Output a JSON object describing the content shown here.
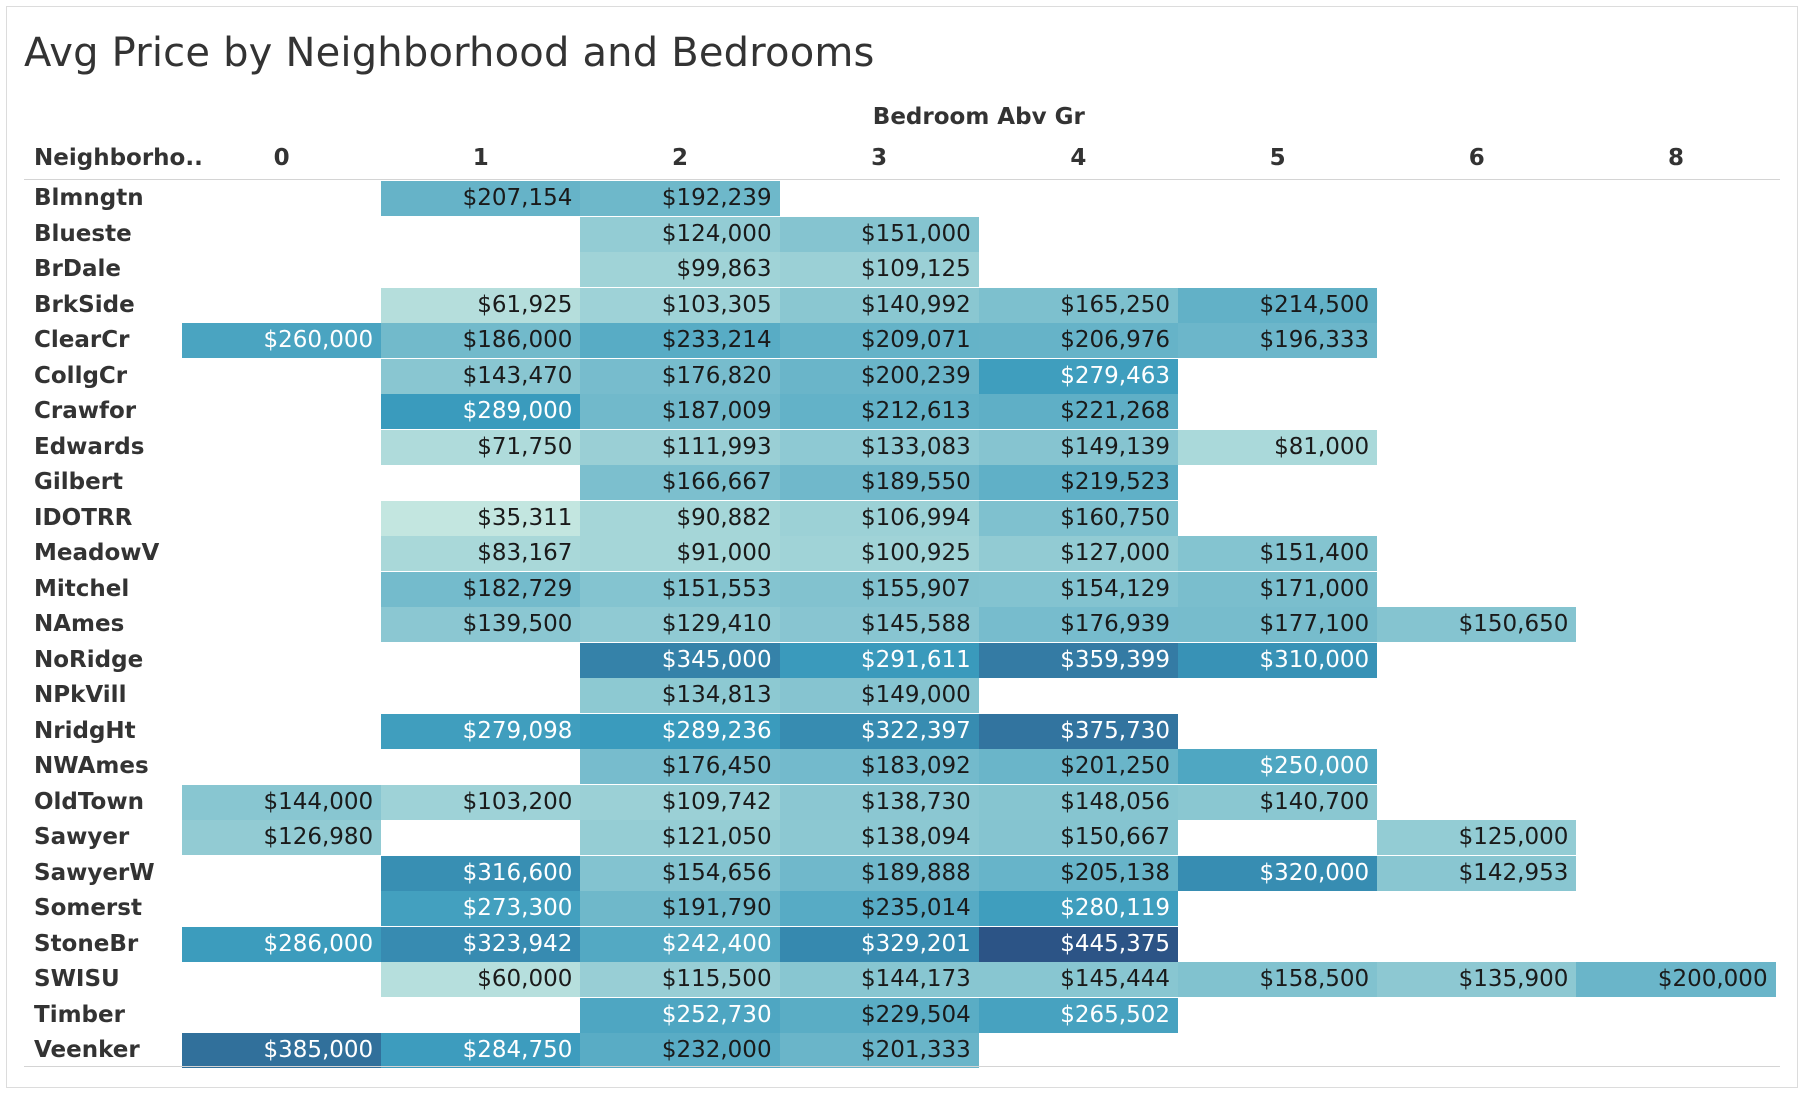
{
  "chart_data": {
    "type": "heatmap",
    "title": "Avg Price by Neighborhood and Bedrooms",
    "column_header": "Bedroom Abv Gr",
    "row_header": "Neighborho..",
    "columns": [
      "0",
      "1",
      "2",
      "3",
      "4",
      "5",
      "6",
      "8"
    ],
    "rows": [
      {
        "name": "Blmngtn",
        "values": [
          null,
          "$207,154",
          "$192,239",
          null,
          null,
          null,
          null,
          null
        ]
      },
      {
        "name": "Blueste",
        "values": [
          null,
          null,
          "$124,000",
          "$151,000",
          null,
          null,
          null,
          null
        ]
      },
      {
        "name": "BrDale",
        "values": [
          null,
          null,
          "$99,863",
          "$109,125",
          null,
          null,
          null,
          null
        ]
      },
      {
        "name": "BrkSide",
        "values": [
          null,
          "$61,925",
          "$103,305",
          "$140,992",
          "$165,250",
          "$214,500",
          null,
          null
        ]
      },
      {
        "name": "ClearCr",
        "values": [
          "$260,000",
          "$186,000",
          "$233,214",
          "$209,071",
          "$206,976",
          "$196,333",
          null,
          null
        ]
      },
      {
        "name": "CollgCr",
        "values": [
          null,
          "$143,470",
          "$176,820",
          "$200,239",
          "$279,463",
          null,
          null,
          null
        ]
      },
      {
        "name": "Crawfor",
        "values": [
          null,
          "$289,000",
          "$187,009",
          "$212,613",
          "$221,268",
          null,
          null,
          null
        ]
      },
      {
        "name": "Edwards",
        "values": [
          null,
          "$71,750",
          "$111,993",
          "$133,083",
          "$149,139",
          "$81,000",
          null,
          null
        ]
      },
      {
        "name": "Gilbert",
        "values": [
          null,
          null,
          "$166,667",
          "$189,550",
          "$219,523",
          null,
          null,
          null
        ]
      },
      {
        "name": "IDOTRR",
        "values": [
          null,
          "$35,311",
          "$90,882",
          "$106,994",
          "$160,750",
          null,
          null,
          null
        ]
      },
      {
        "name": "MeadowV",
        "values": [
          null,
          "$83,167",
          "$91,000",
          "$100,925",
          "$127,000",
          "$151,400",
          null,
          null
        ]
      },
      {
        "name": "Mitchel",
        "values": [
          null,
          "$182,729",
          "$151,553",
          "$155,907",
          "$154,129",
          "$171,000",
          null,
          null
        ]
      },
      {
        "name": "NAmes",
        "values": [
          null,
          "$139,500",
          "$129,410",
          "$145,588",
          "$176,939",
          "$177,100",
          "$150,650",
          null
        ]
      },
      {
        "name": "NoRidge",
        "values": [
          null,
          null,
          "$345,000",
          "$291,611",
          "$359,399",
          "$310,000",
          null,
          null
        ]
      },
      {
        "name": "NPkVill",
        "values": [
          null,
          null,
          "$134,813",
          "$149,000",
          null,
          null,
          null,
          null
        ]
      },
      {
        "name": "NridgHt",
        "values": [
          null,
          "$279,098",
          "$289,236",
          "$322,397",
          "$375,730",
          null,
          null,
          null
        ]
      },
      {
        "name": "NWAmes",
        "values": [
          null,
          null,
          "$176,450",
          "$183,092",
          "$201,250",
          "$250,000",
          null,
          null
        ]
      },
      {
        "name": "OldTown",
        "values": [
          "$144,000",
          "$103,200",
          "$109,742",
          "$138,730",
          "$148,056",
          "$140,700",
          null,
          null
        ]
      },
      {
        "name": "Sawyer",
        "values": [
          "$126,980",
          null,
          "$121,050",
          "$138,094",
          "$150,667",
          null,
          "$125,000",
          null
        ]
      },
      {
        "name": "SawyerW",
        "values": [
          null,
          "$316,600",
          "$154,656",
          "$189,888",
          "$205,138",
          "$320,000",
          "$142,953",
          null
        ]
      },
      {
        "name": "Somerst",
        "values": [
          null,
          "$273,300",
          "$191,790",
          "$235,014",
          "$280,119",
          null,
          null,
          null
        ]
      },
      {
        "name": "StoneBr",
        "values": [
          "$286,000",
          "$323,942",
          "$242,400",
          "$329,201",
          "$445,375",
          null,
          null,
          null
        ]
      },
      {
        "name": "SWISU",
        "values": [
          null,
          "$60,000",
          "$115,500",
          "$144,173",
          "$145,444",
          "$158,500",
          "$135,900",
          "$200,000"
        ]
      },
      {
        "name": "Timber",
        "values": [
          null,
          null,
          "$252,730",
          "$229,504",
          "$265,502",
          null,
          null,
          null
        ]
      },
      {
        "name": "Veenker",
        "values": [
          "$385,000",
          "$284,750",
          "$232,000",
          "$201,333",
          null,
          null,
          null,
          null
        ]
      }
    ],
    "color_scale": {
      "low_value": 35311,
      "high_value": 445375,
      "low_color": "#c3e6e0",
      "mid_color": "#3a9bbd",
      "high_color": "#2c5486"
    },
    "grid": false
  }
}
